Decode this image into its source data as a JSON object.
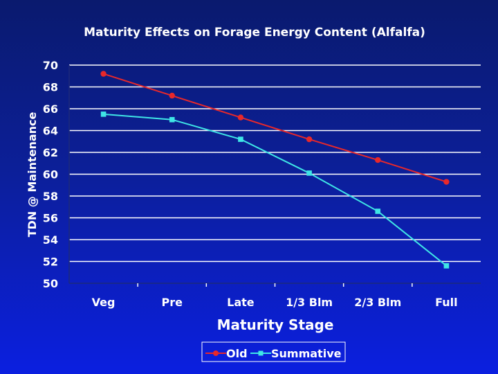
{
  "chart_data": {
    "type": "line",
    "title": "Maturity Effects on Forage Energy Content (Alfalfa)",
    "xlabel": "Maturity Stage",
    "ylabel": "TDN @ Maintenance",
    "categories": [
      "Veg",
      "Pre",
      "Late",
      "1/3 Blm",
      "2/3 Blm",
      "Full"
    ],
    "ylim": [
      50,
      70
    ],
    "yticks": [
      50,
      52,
      54,
      56,
      58,
      60,
      62,
      64,
      66,
      68,
      70
    ],
    "grid": true,
    "legend_position": "bottom-center",
    "series": [
      {
        "name": "Old",
        "color": "#e8282a",
        "marker": "circle",
        "values": [
          69.2,
          67.2,
          65.2,
          63.2,
          61.3,
          59.3
        ]
      },
      {
        "name": "Summative",
        "color": "#3fe6e6",
        "marker": "square",
        "values": [
          65.5,
          65.0,
          63.2,
          60.1,
          56.6,
          51.6
        ]
      }
    ]
  }
}
